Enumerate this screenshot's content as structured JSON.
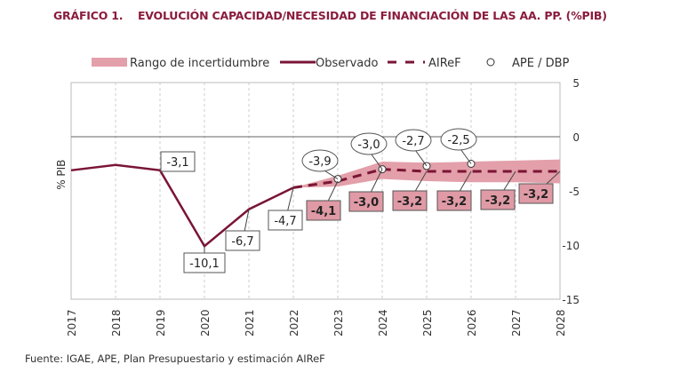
{
  "title": "GRÁFICO 1.    EVOLUCIÓN CAPACIDAD/NECESIDAD DE FINANCIACIÓN DE LAS AA. PP. (%PIB)",
  "source": "Fuente: IGAE, APE, Plan Presupuestario y estimación AIReF",
  "colors": {
    "observed": "#7a1535",
    "band": "#e3a0aa",
    "label_fill": "#df9aa5"
  },
  "chart_data": {
    "type": "line",
    "ylabel": "% PIB",
    "ylim": [
      -15,
      5
    ],
    "yticks": [
      "5",
      "0",
      "-5",
      "-10",
      "-15"
    ],
    "yticks_values": [
      5,
      0,
      -5,
      -10,
      -15
    ],
    "y_axis_side": "right",
    "categories": [
      "2017",
      "2018",
      "2019",
      "2020",
      "2021",
      "2022",
      "2023",
      "2024",
      "2025",
      "2026",
      "2027",
      "2028"
    ],
    "legend": {
      "position": "top",
      "items": [
        "Rango de incertidumbre",
        "Observado",
        "AIReF",
        "APE / DBP"
      ]
    },
    "series": [
      {
        "name": "Observado",
        "x": [
          "2017",
          "2018",
          "2019",
          "2020",
          "2021",
          "2022"
        ],
        "values": [
          -3.1,
          -2.6,
          -3.1,
          -10.1,
          -6.7,
          -4.7
        ],
        "labels": [
          "",
          "",
          "-3,1",
          "-10,1",
          "-6,7",
          "-4,7"
        ]
      },
      {
        "name": "AIReF",
        "x": [
          "2022",
          "2023",
          "2024",
          "2025",
          "2026",
          "2027",
          "2028"
        ],
        "values": [
          -4.7,
          -4.1,
          -3.0,
          -3.2,
          -3.2,
          -3.2,
          -3.2
        ],
        "labels": [
          "",
          "-4,1",
          "-3,0",
          "-3,2",
          "-3,2",
          "-3,2",
          "-3,2"
        ]
      },
      {
        "name": "APE / DBP",
        "x": [
          "2023",
          "2024",
          "2025",
          "2026"
        ],
        "values": [
          -3.9,
          -3.0,
          -2.7,
          -2.5
        ],
        "labels": [
          "-3,9",
          "-3,0",
          "-2,7",
          "-2,5"
        ]
      },
      {
        "name": "Rango de incertidumbre",
        "x": [
          "2022",
          "2023",
          "2024",
          "2025",
          "2026",
          "2027",
          "2028"
        ],
        "upper": [
          -4.7,
          -3.6,
          -2.3,
          -2.4,
          -2.3,
          -2.2,
          -2.1
        ],
        "lower": [
          -4.7,
          -4.6,
          -3.9,
          -4.1,
          -4.2,
          -4.2,
          -4.3
        ]
      }
    ]
  }
}
